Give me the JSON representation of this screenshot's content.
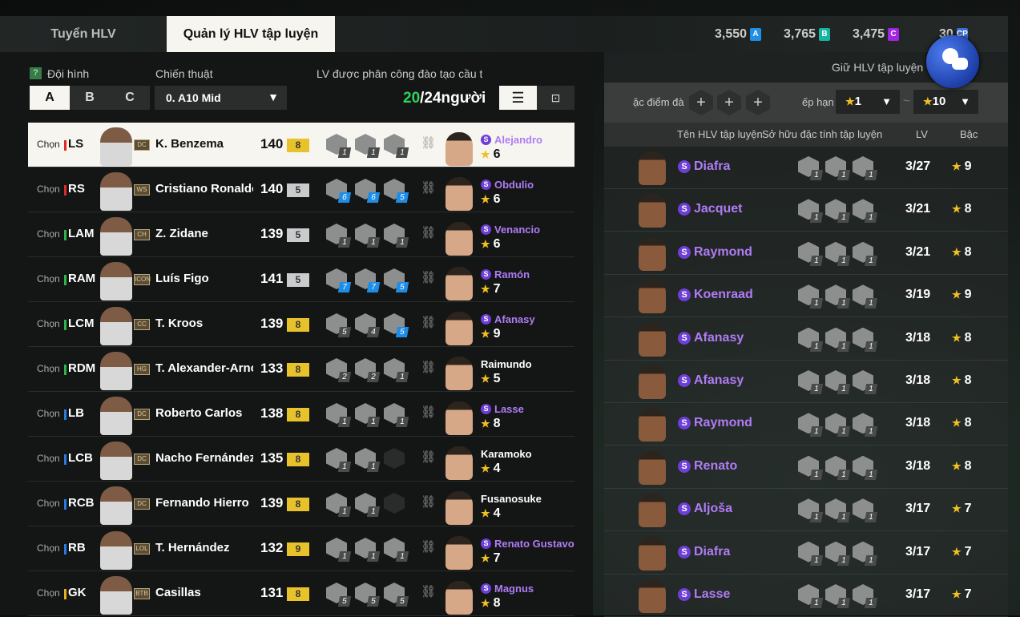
{
  "tabs": {
    "recruit": "Tuyển HLV",
    "manage": "Quản lý HLV tập luyện"
  },
  "currency": [
    {
      "value": "3,550",
      "icon": "A",
      "color": "#1f8fe8"
    },
    {
      "value": "3,765",
      "icon": "B",
      "color": "#16b5a2"
    },
    {
      "value": "3,475",
      "icon": "C",
      "color": "#a224e0"
    },
    {
      "value": "30",
      "icon": "CP",
      "color": "#3a6fd8"
    }
  ],
  "left": {
    "formation_label": "Đội hình",
    "help": "?",
    "formations": [
      "A",
      "B",
      "C"
    ],
    "selected_formation": "A",
    "tactic_label": "Chiến thuật",
    "tactic_value": "0. A10 Mid",
    "assigned_label": "LV được phân công đào tạo cầu thủ",
    "assigned_current": "20",
    "assigned_total": "/24người",
    "choose_label": "Chọn",
    "players": [
      {
        "pos": "LS",
        "pos_color": "#e02a2a",
        "card": "DC",
        "name": "K. Benzema",
        "ovr": "140",
        "grade": "8",
        "grade_color": "#e8c22a",
        "traits": [
          {
            "v": "1",
            "b": false
          },
          {
            "v": "1",
            "b": false
          },
          {
            "v": "1",
            "b": false
          }
        ],
        "coach": "Alejandro",
        "coach_s": true,
        "coach_stars": "6",
        "selected": true
      },
      {
        "pos": "RS",
        "pos_color": "#e02a2a",
        "card": "WS",
        "name": "Cristiano Ronaldo",
        "ovr": "140",
        "grade": "5",
        "grade_color": "#c9cbcc",
        "traits": [
          {
            "v": "6",
            "b": true
          },
          {
            "v": "6",
            "b": true
          },
          {
            "v": "5",
            "b": true
          }
        ],
        "coach": "Obdulio",
        "coach_s": true,
        "coach_stars": "6"
      },
      {
        "pos": "LAM",
        "pos_color": "#2fb34a",
        "card": "CH",
        "name": "Z. Zidane",
        "ovr": "139",
        "grade": "5",
        "grade_color": "#c9cbcc",
        "traits": [
          {
            "v": "1",
            "b": false
          },
          {
            "v": "1",
            "b": false
          },
          {
            "v": "1",
            "b": false
          }
        ],
        "coach": "Venancio",
        "coach_s": true,
        "coach_stars": "6"
      },
      {
        "pos": "RAM",
        "pos_color": "#2fb34a",
        "card": "ICON",
        "name": "Luís Figo",
        "ovr": "141",
        "grade": "5",
        "grade_color": "#c9cbcc",
        "traits": [
          {
            "v": "7",
            "b": true
          },
          {
            "v": "7",
            "b": true
          },
          {
            "v": "5",
            "b": true
          }
        ],
        "coach": "Ramón",
        "coach_s": true,
        "coach_stars": "7"
      },
      {
        "pos": "LCM",
        "pos_color": "#2fb34a",
        "card": "CC",
        "name": "T. Kroos",
        "ovr": "139",
        "grade": "8",
        "grade_color": "#e8c22a",
        "traits": [
          {
            "v": "5",
            "b": false
          },
          {
            "v": "4",
            "b": false
          },
          {
            "v": "5",
            "b": true
          }
        ],
        "coach": "Afanasy",
        "coach_s": true,
        "coach_stars": "9"
      },
      {
        "pos": "RDM",
        "pos_color": "#2fb34a",
        "card": "HG",
        "name": "T. Alexander-Arnold",
        "ovr": "133",
        "grade": "8",
        "grade_color": "#e8c22a",
        "traits": [
          {
            "v": "2",
            "b": false
          },
          {
            "v": "2",
            "b": false
          },
          {
            "v": "1",
            "b": false
          }
        ],
        "coach": "Raimundo",
        "coach_s": false,
        "coach_stars": "5"
      },
      {
        "pos": "LB",
        "pos_color": "#2a7ae0",
        "card": "DC",
        "name": "Roberto Carlos",
        "ovr": "138",
        "grade": "8",
        "grade_color": "#e8c22a",
        "traits": [
          {
            "v": "1",
            "b": false
          },
          {
            "v": "1",
            "b": false
          },
          {
            "v": "1",
            "b": false
          }
        ],
        "coach": "Lasse",
        "coach_s": true,
        "coach_stars": "8"
      },
      {
        "pos": "LCB",
        "pos_color": "#2a7ae0",
        "card": "DC",
        "name": "Nacho Fernández",
        "ovr": "135",
        "grade": "8",
        "grade_color": "#e8c22a",
        "traits": [
          {
            "v": "1",
            "b": false
          },
          {
            "v": "1",
            "b": false
          },
          null
        ],
        "coach": "Karamoko",
        "coach_s": false,
        "coach_stars": "4"
      },
      {
        "pos": "RCB",
        "pos_color": "#2a7ae0",
        "card": "DC",
        "name": "Fernando Hierro",
        "ovr": "139",
        "grade": "8",
        "grade_color": "#e8c22a",
        "traits": [
          {
            "v": "1",
            "b": false
          },
          {
            "v": "1",
            "b": false
          },
          null
        ],
        "coach": "Fusanosuke",
        "coach_s": false,
        "coach_stars": "4"
      },
      {
        "pos": "RB",
        "pos_color": "#2a7ae0",
        "card": "LOL",
        "name": "T. Hernández",
        "ovr": "132",
        "grade": "9",
        "grade_color": "#e8c22a",
        "traits": [
          {
            "v": "1",
            "b": false
          },
          {
            "v": "1",
            "b": false
          },
          {
            "v": "1",
            "b": false
          }
        ],
        "coach": "Renato Gustavo",
        "coach_s": true,
        "coach_stars": "7"
      },
      {
        "pos": "GK",
        "pos_color": "#e8b020",
        "card": "BTB",
        "name": "Casillas",
        "ovr": "131",
        "grade": "8",
        "grade_color": "#e8c22a",
        "traits": [
          {
            "v": "5",
            "b": false
          },
          {
            "v": "5",
            "b": false
          },
          {
            "v": "5",
            "b": false
          }
        ],
        "coach": "Magnus",
        "coach_s": true,
        "coach_stars": "8"
      }
    ]
  },
  "right": {
    "keep_label": "Giữ HLV tập luyện",
    "traits_filter_label": "ặc điểm đà",
    "rank_label": "ếp hạn",
    "rank_from": "1",
    "rank_to": "10",
    "tilde": "~",
    "headers": {
      "name": "Tên HLV tập luyện",
      "traits": "Sở hữu đặc tính tập luyện",
      "lv": "LV",
      "grade": "Bậc"
    },
    "coaches": [
      {
        "name": "Diafra",
        "lv": "3/27",
        "grade": "9"
      },
      {
        "name": "Jacquet",
        "lv": "3/21",
        "grade": "8"
      },
      {
        "name": "Raymond",
        "lv": "3/21",
        "grade": "8"
      },
      {
        "name": "Koenraad",
        "lv": "3/19",
        "grade": "9"
      },
      {
        "name": "Afanasy",
        "lv": "3/18",
        "grade": "8"
      },
      {
        "name": "Afanasy",
        "lv": "3/18",
        "grade": "8"
      },
      {
        "name": "Raymond",
        "lv": "3/18",
        "grade": "8"
      },
      {
        "name": "Renato",
        "lv": "3/18",
        "grade": "8"
      },
      {
        "name": "Aljoša",
        "lv": "3/17",
        "grade": "7"
      },
      {
        "name": "Diafra",
        "lv": "3/17",
        "grade": "7"
      },
      {
        "name": "Lasse",
        "lv": "3/17",
        "grade": "7"
      }
    ],
    "trait_level": "1"
  }
}
